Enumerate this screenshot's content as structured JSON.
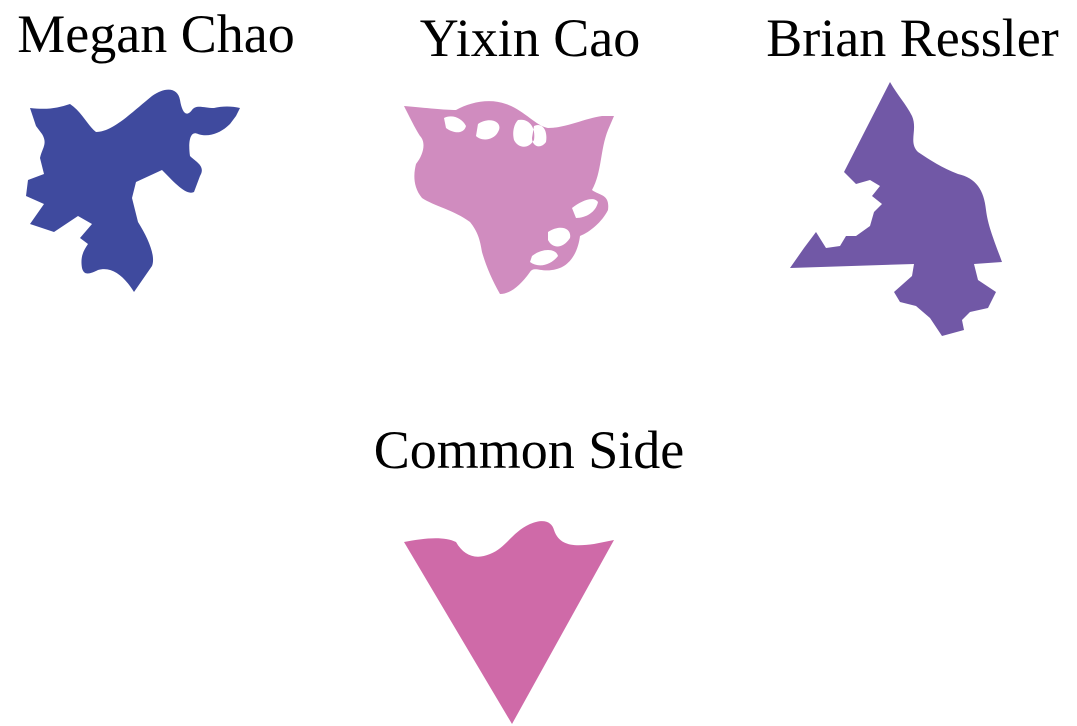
{
  "labels": {
    "megan": "Megan Chao",
    "yixin": "Yixin Cao",
    "brian": "Brian Ressler",
    "common": "Common Side"
  },
  "colors": {
    "megan": "#3f4a9e",
    "yixin": "#d08cbf",
    "brian": "#7158a6",
    "common": "#cf6aa8",
    "background": "#ffffff",
    "text": "#000000"
  }
}
